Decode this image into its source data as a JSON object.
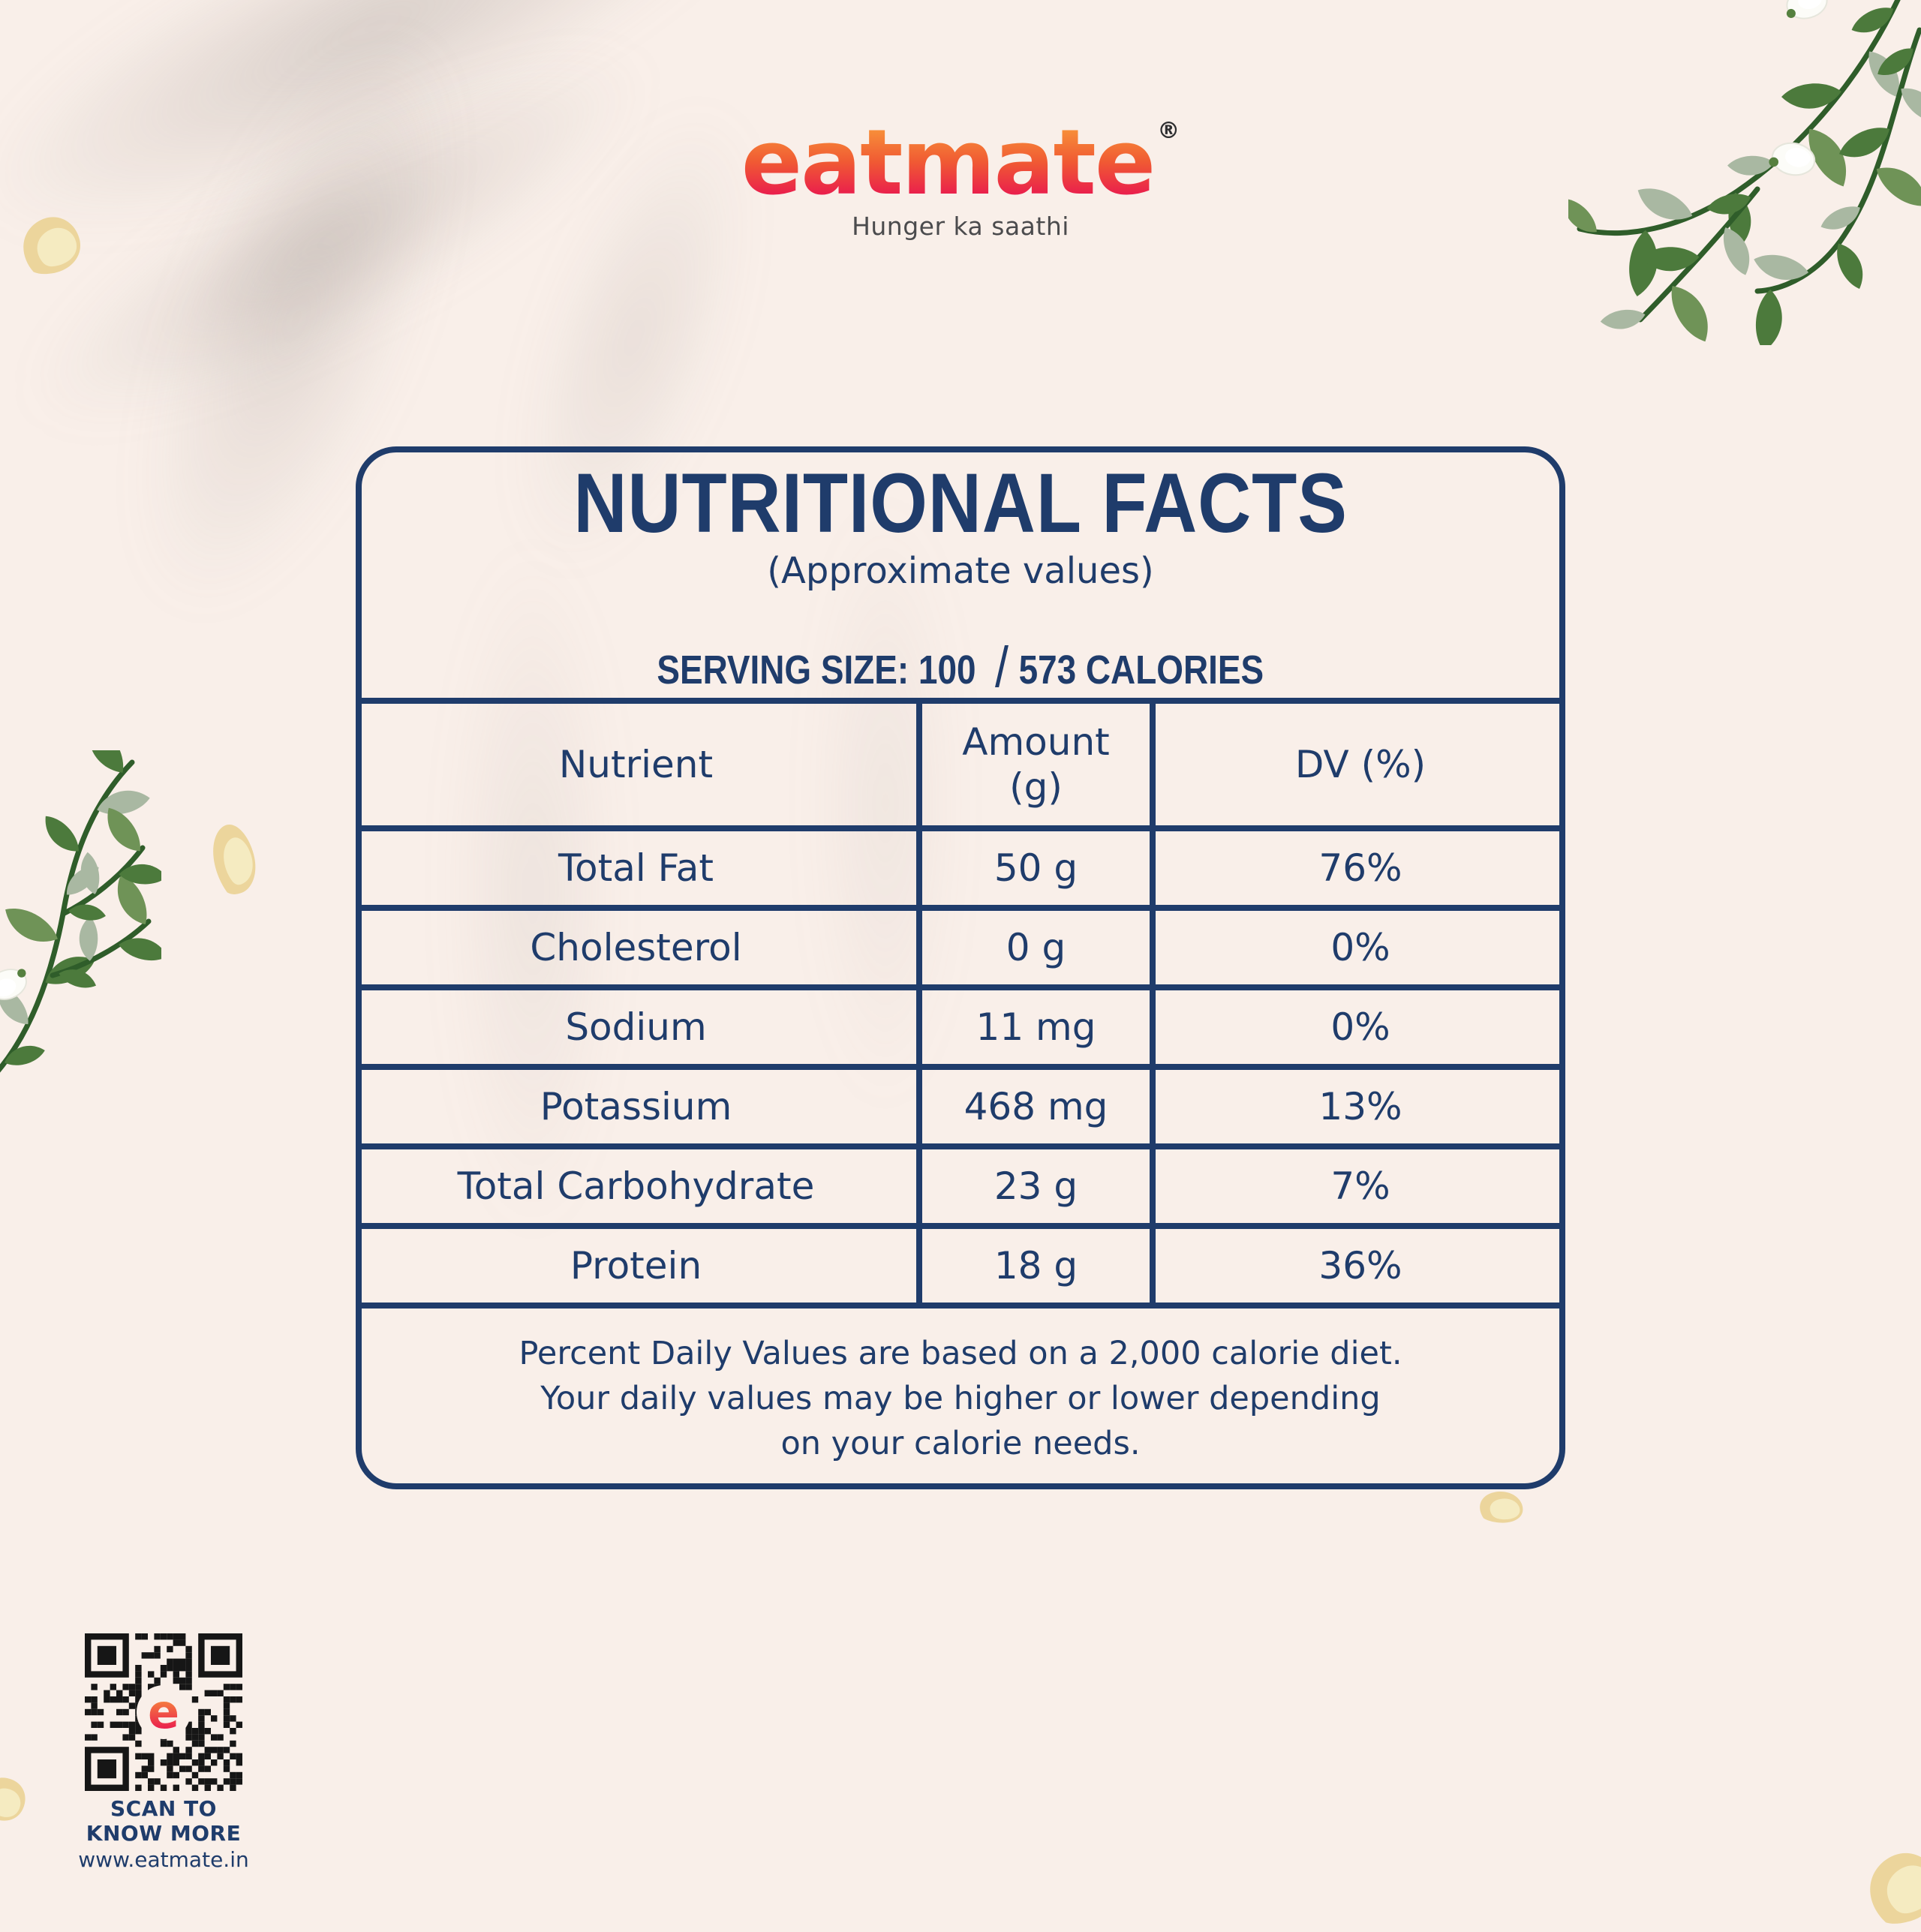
{
  "brand": {
    "logo_text": "eatmate",
    "registered_mark": "®",
    "tagline": "Hunger ka saathi"
  },
  "panel": {
    "title": "NUTRITIONAL FACTS",
    "subtitle": "(Approximate values)",
    "serving_line": {
      "serving": "SERVING SIZE: 100",
      "separator": "/",
      "calories": "573 CALORIES"
    },
    "table": {
      "columns": [
        {
          "label": "Nutrient"
        },
        {
          "label": "Amount",
          "sublabel": "(g)"
        },
        {
          "label": "DV (%)"
        }
      ],
      "rows": [
        {
          "nutrient": "Total Fat",
          "amount": "50 g",
          "dv": "76%"
        },
        {
          "nutrient": "Cholesterol",
          "amount": "0 g",
          "dv": "0%"
        },
        {
          "nutrient": "Sodium",
          "amount": "11 mg",
          "dv": "0%"
        },
        {
          "nutrient": "Potassium",
          "amount": "468 mg",
          "dv": "13%"
        },
        {
          "nutrient": "Total Carbohydrate",
          "amount": "23 g",
          "dv": "7%"
        },
        {
          "nutrient": "Protein",
          "amount": "18 g",
          "dv": "36%"
        }
      ]
    },
    "footnote_lines": [
      "Percent Daily Values are based on a 2,000 calorie diet.",
      "Your daily values may be higher or lower depending",
      "on your calorie needs."
    ]
  },
  "qr": {
    "caption_line1": "SCAN TO",
    "caption_line2": "KNOW MORE",
    "website": "www.eatmate.in",
    "center_letter": "e"
  },
  "colors": {
    "navy": "#1f3c6b",
    "background": "#f9efe9",
    "logo_gradient_top": "#f8953a",
    "logo_gradient_bottom": "#e9194f",
    "tagline_gray": "#4b4b4d",
    "seed_cream": "#ecd59c",
    "seed_highlight": "#f5ebc1",
    "leaf_dark_green": "#4c7a3c",
    "leaf_sage": "#a9b8a2",
    "qr_black": "#161616"
  }
}
